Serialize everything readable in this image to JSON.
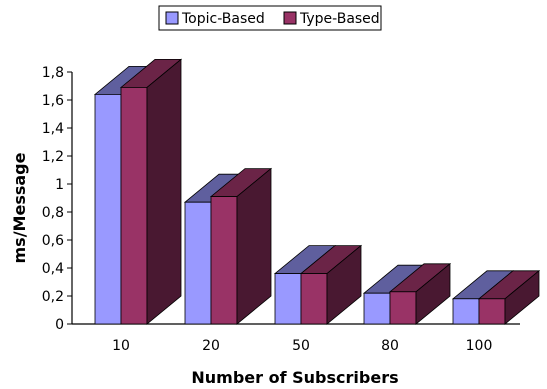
{
  "chart_data": {
    "type": "bar",
    "style": "3d-clustered",
    "categories": [
      "10",
      "20",
      "50",
      "80",
      "100"
    ],
    "series": [
      {
        "name": "Topic-Based",
        "values": [
          1.64,
          0.87,
          0.36,
          0.22,
          0.18
        ],
        "color": "#9999ff"
      },
      {
        "name": "Type-Based",
        "values": [
          1.69,
          0.91,
          0.36,
          0.23,
          0.18
        ],
        "color": "#993366"
      }
    ],
    "ylim": [
      0,
      1.8
    ],
    "yticks": [
      "0",
      "0,2",
      "0,4",
      "0,6",
      "0,8",
      "1",
      "1,2",
      "1,4",
      "1,6",
      "1,8"
    ],
    "xlabel": "Number of Subscribers",
    "ylabel": "ms/Message",
    "title": "",
    "legend_position": "top",
    "grid": false
  }
}
